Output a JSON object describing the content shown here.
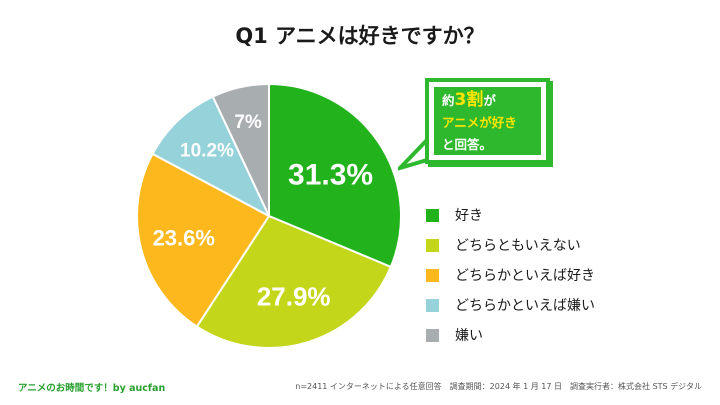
{
  "header": {
    "title": "Q1 アニメは好きですか？"
  },
  "callout": {
    "line1_prefix": "約",
    "line1_big": "3",
    "line1_big2": "割",
    "line1_suffix": "が",
    "line2": "アニメが好き",
    "line3": "と回答。"
  },
  "colors": {
    "like": "#22b21c",
    "neutral": "#c4d61a",
    "lean_like": "#fcb81c",
    "lean_dislike": "#96d2da",
    "dislike": "#a8adb0",
    "accent": "#2eb82e"
  },
  "chart_data": {
    "type": "pie",
    "title": "Q1 アニメは好きですか？",
    "categories": [
      "好き",
      "どちらともいえない",
      "どちらかといえば好き",
      "どちらかといえば嫌い",
      "嫌い"
    ],
    "values": [
      31.3,
      27.9,
      23.6,
      10.2,
      7
    ],
    "labels": [
      "31.3%",
      "27.9%",
      "23.6%",
      "10.2%",
      "7%"
    ],
    "legend_position": "right"
  },
  "legend": [
    {
      "label": "好き",
      "color": "#22b21c"
    },
    {
      "label": "どちらともいえない",
      "color": "#c4d61a"
    },
    {
      "label": "どちらかといえば好き",
      "color": "#fcb81c"
    },
    {
      "label": "どちらかといえば嫌い",
      "color": "#96d2da"
    },
    {
      "label": "嫌い",
      "color": "#a8adb0"
    }
  ],
  "footer": {
    "left": "アニメのお時間です！by aucfan",
    "right": "n=2411 インターネットによる任意回答　調査期間：2024 年 1 月 17 日　調査実行者：株式会社 STS デジタル"
  }
}
